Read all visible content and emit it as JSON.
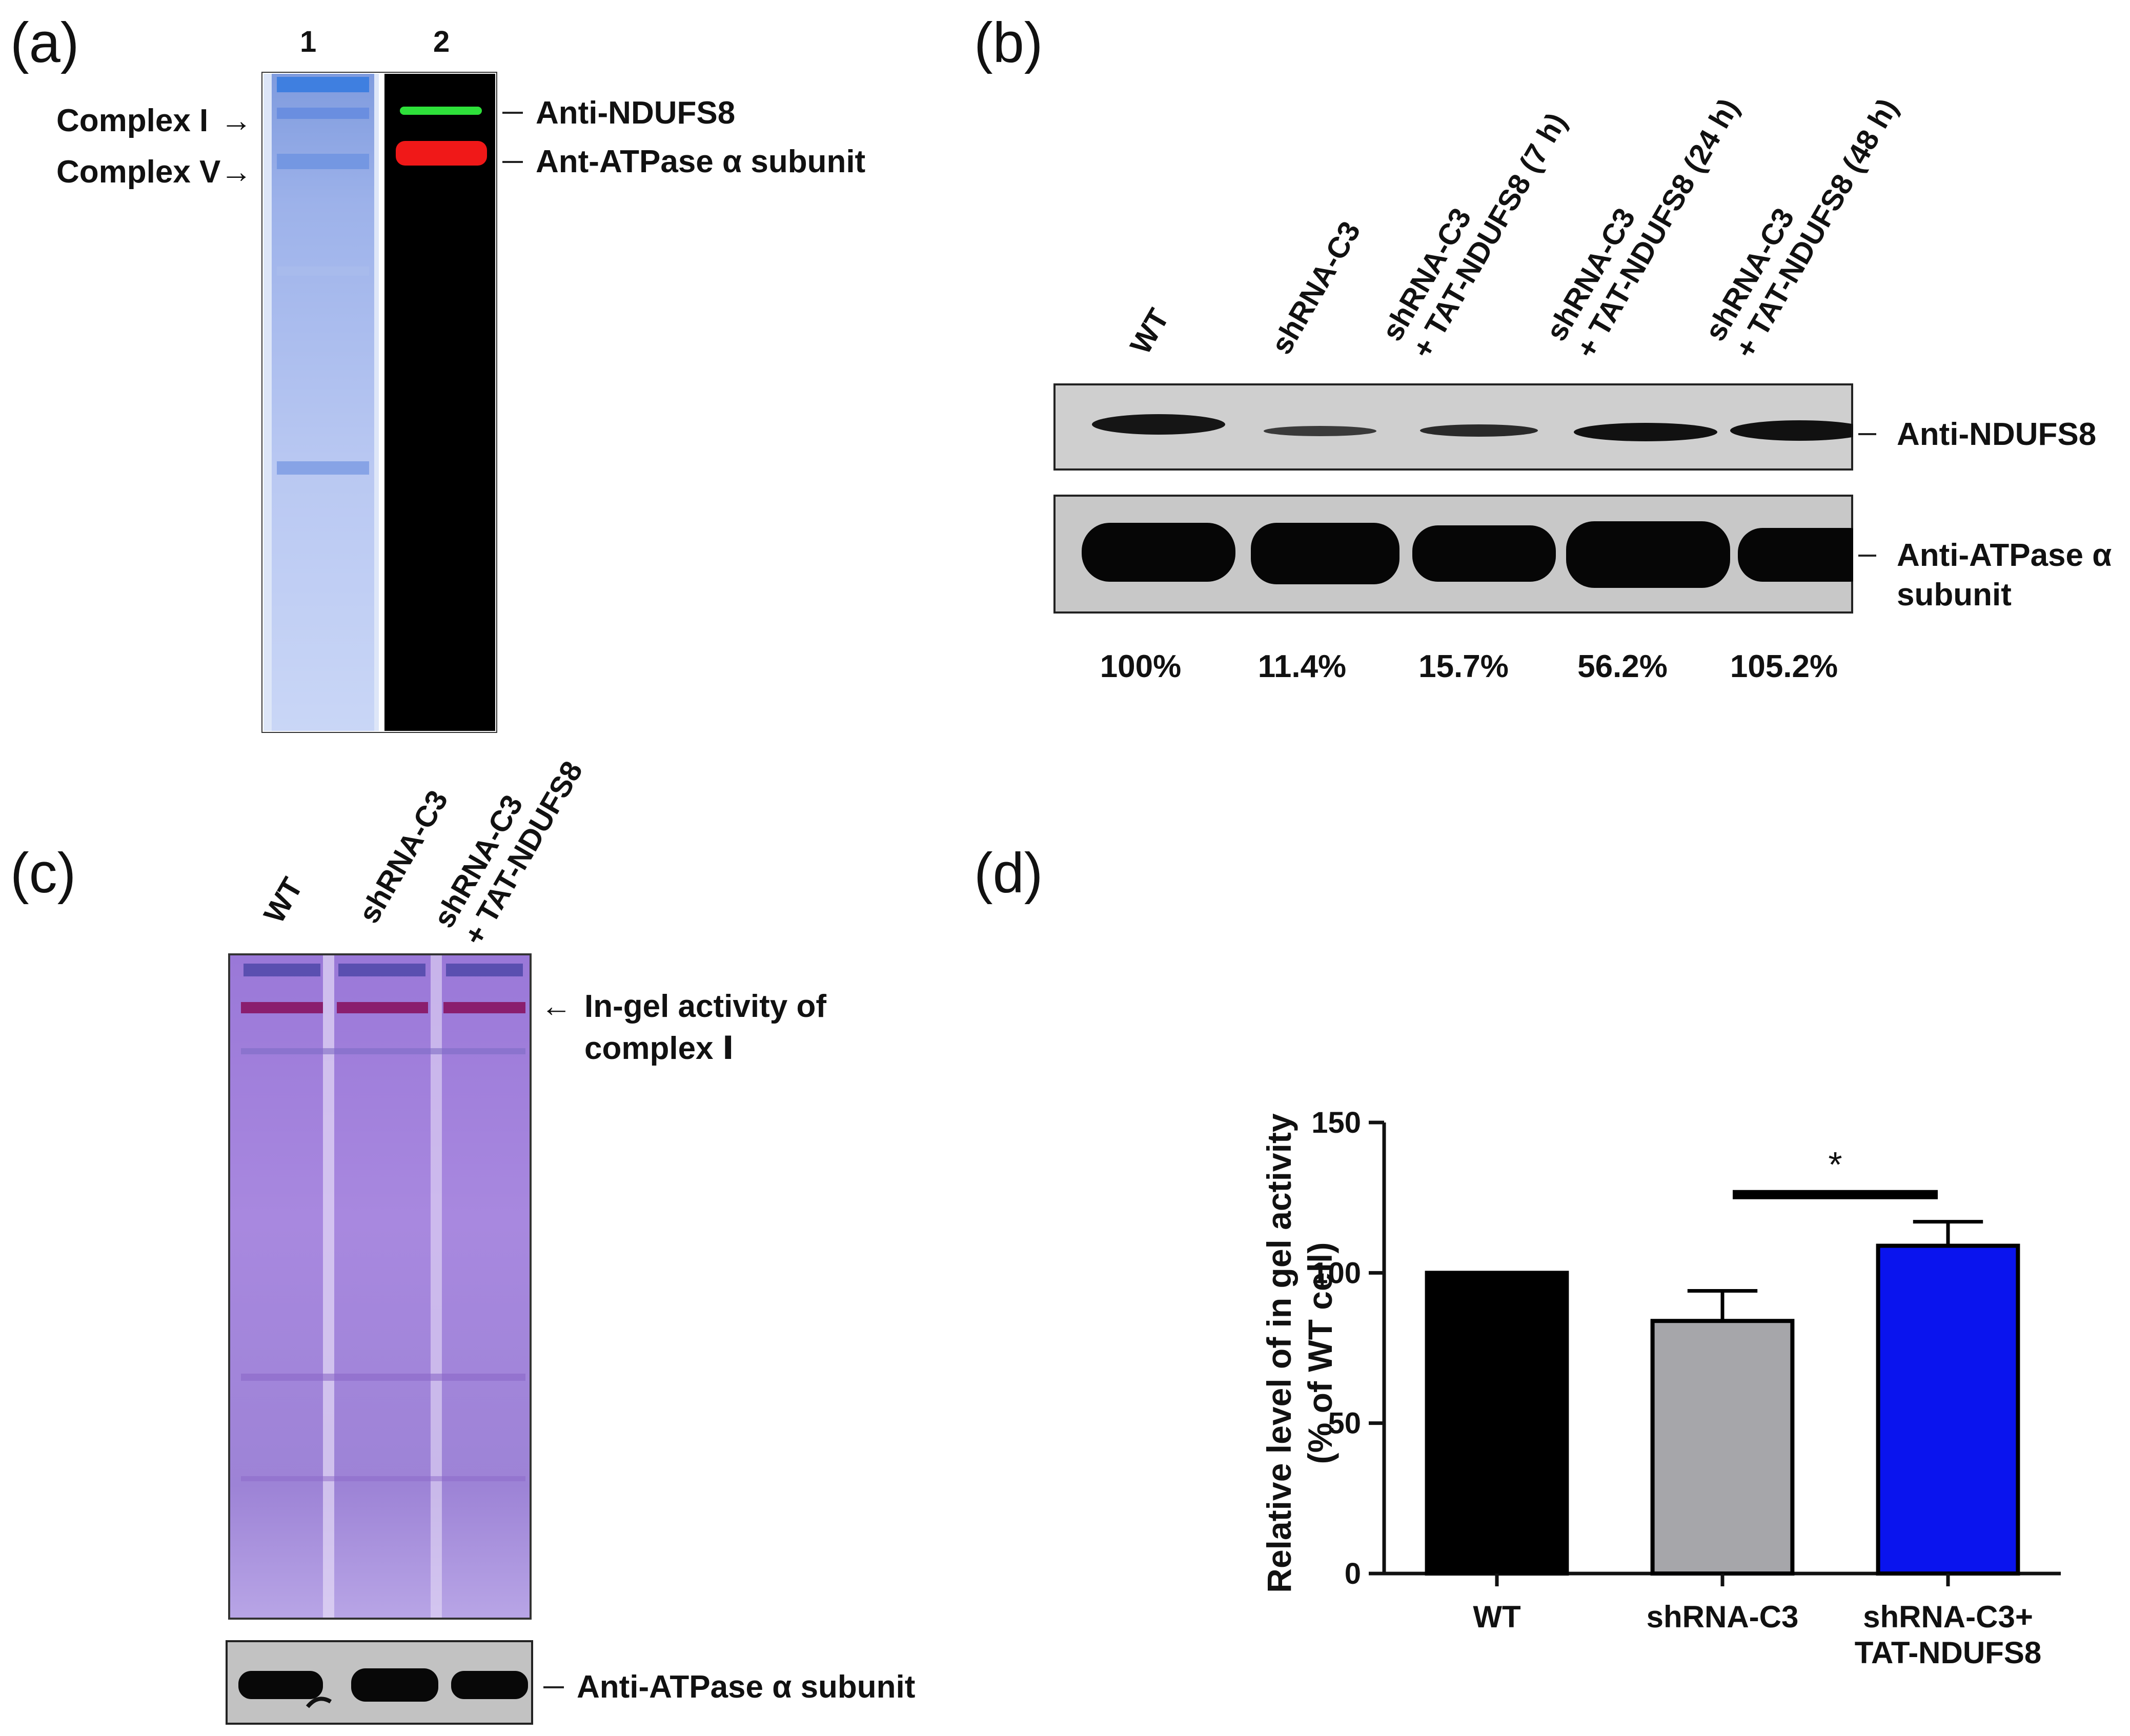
{
  "panel_a": {
    "label": "(a)",
    "lane1": "1",
    "lane2": "2",
    "complex1": "Complex I",
    "complex5": "Complex V",
    "band_ndufs8": "Anti-NDUFS8",
    "band_atpase": "Ant-ATPase α subunit"
  },
  "panel_b": {
    "label": "(b)",
    "lanes": [
      {
        "line1": "WT",
        "line2": ""
      },
      {
        "line1": "shRNA-C3",
        "line2": ""
      },
      {
        "line1": "shRNA-C3",
        "line2": "+ TAT-NDUFS8 (7 h)"
      },
      {
        "line1": "shRNA-C3",
        "line2": "+ TAT-NDUFS8 (24 h)"
      },
      {
        "line1": "shRNA-C3",
        "line2": "+ TAT-NDUFS8 (48 h)"
      }
    ],
    "band_ndufs8": "Anti-NDUFS8",
    "band_atpase_1": "Anti-ATPase α",
    "band_atpase_2": "subunit",
    "percents": [
      "100%",
      "11.4%",
      "15.7%",
      "56.2%",
      "105.2%"
    ]
  },
  "panel_c": {
    "label": "(c)",
    "lanes": [
      {
        "line1": "WT",
        "line2": ""
      },
      {
        "line1": "shRNA-C3",
        "line2": ""
      },
      {
        "line1": "shRNA-C3",
        "line2": "+ TAT-NDUFS8"
      }
    ],
    "activity_1": "In-gel activity of",
    "activity_2": "complex Ⅰ",
    "band_atpase": "Anti-ATPase α subunit"
  },
  "panel_d": {
    "label": "(d)",
    "significance": "*",
    "ylabel_1": "Relative level of in gel activity",
    "ylabel_2": "(% of WT cell)"
  },
  "chart_data": {
    "type": "bar",
    "categories": [
      "WT",
      "shRNA-C3",
      "shRNA-C3+\nTAT-NDUFS8"
    ],
    "category_lines": [
      [
        "WT"
      ],
      [
        "shRNA-C3"
      ],
      [
        "shRNA-C3+",
        "TAT-NDUFS8"
      ]
    ],
    "values": [
      100,
      84,
      109
    ],
    "errors": [
      0,
      10,
      8
    ],
    "colors": [
      "#000000",
      "#a6a6aa",
      "#0a14ee"
    ],
    "ylim": [
      0,
      150
    ],
    "yticks": [
      0,
      50,
      100,
      150
    ],
    "ylabel": "Relative level of in gel activity\n(% of WT cell)",
    "xlabel": "",
    "title": "",
    "significance": {
      "between": [
        1,
        2
      ],
      "label": "*"
    },
    "grid": false
  }
}
